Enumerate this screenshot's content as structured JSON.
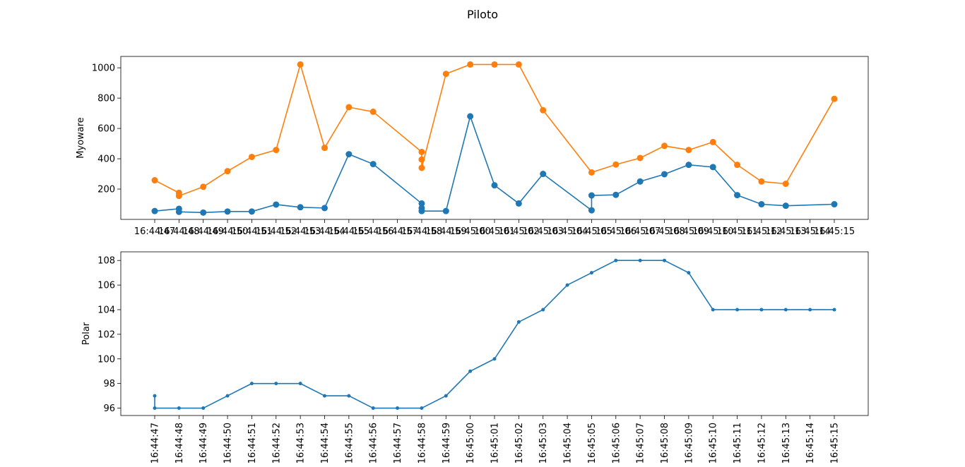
{
  "figure": {
    "suptitle": "Piloto"
  },
  "chart_data": [
    {
      "type": "line",
      "title": "",
      "xlabel": "",
      "ylabel": "Myoware",
      "ylim": [
        0,
        1075
      ],
      "yticks": [
        200,
        400,
        600,
        800,
        1000
      ],
      "grid": false,
      "markers": "large-circle",
      "categories": [
        "16:44:47",
        "16:44:48",
        "16:44:49",
        "16:44:50",
        "16:44:51",
        "16:44:52",
        "16:44:53",
        "16:44:54",
        "16:44:55",
        "16:44:56",
        "16:44:57",
        "16:44:58",
        "16:44:59",
        "16:45:00",
        "16:45:01",
        "16:45:02",
        "16:45:03",
        "16:45:04",
        "16:45:05",
        "16:45:06",
        "16:45:07",
        "16:45:08",
        "16:45:09",
        "16:45:10",
        "16:45:11",
        "16:45:12",
        "16:45:13",
        "16:45:14",
        "16:45:15"
      ],
      "series": [
        {
          "color": "#1f77b4",
          "points": [
            [
              "16:44:47",
              55
            ],
            [
              "16:44:48",
              70
            ],
            [
              "16:44:48",
              50
            ],
            [
              "16:44:49",
              45
            ],
            [
              "16:44:50",
              52
            ],
            [
              "16:44:51",
              52
            ],
            [
              "16:44:52",
              98
            ],
            [
              "16:44:53",
              80
            ],
            [
              "16:44:54",
              75
            ],
            [
              "16:44:55",
              430
            ],
            [
              "16:44:56",
              365
            ],
            [
              "16:44:58",
              105
            ],
            [
              "16:44:58",
              75
            ],
            [
              "16:44:58",
              55
            ],
            [
              "16:44:59",
              55
            ],
            [
              "16:45:00",
              680
            ],
            [
              "16:45:01",
              225
            ],
            [
              "16:45:02",
              105
            ],
            [
              "16:45:03",
              300
            ],
            [
              "16:45:05",
              60
            ],
            [
              "16:45:05",
              158
            ],
            [
              "16:45:06",
              162
            ],
            [
              "16:45:07",
              250
            ],
            [
              "16:45:08",
              298
            ],
            [
              "16:45:09",
              360
            ],
            [
              "16:45:10",
              345
            ],
            [
              "16:45:11",
              160
            ],
            [
              "16:45:12",
              100
            ],
            [
              "16:45:13",
              90
            ],
            [
              "16:45:15",
              100
            ]
          ]
        },
        {
          "color": "#ff7f0e",
          "points": [
            [
              "16:44:47",
              258
            ],
            [
              "16:44:48",
              175
            ],
            [
              "16:44:48",
              155
            ],
            [
              "16:44:49",
              215
            ],
            [
              "16:44:50",
              318
            ],
            [
              "16:44:51",
              412
            ],
            [
              "16:44:52",
              458
            ],
            [
              "16:44:53",
              1022
            ],
            [
              "16:44:54",
              472
            ],
            [
              "16:44:55",
              740
            ],
            [
              "16:44:56",
              710
            ],
            [
              "16:44:58",
              445
            ],
            [
              "16:44:58",
              395
            ],
            [
              "16:44:58",
              340
            ],
            [
              "16:44:59",
              960
            ],
            [
              "16:45:00",
              1022
            ],
            [
              "16:45:01",
              1022
            ],
            [
              "16:45:02",
              1022
            ],
            [
              "16:45:03",
              720
            ],
            [
              "16:45:05",
              310
            ],
            [
              "16:45:06",
              362
            ],
            [
              "16:45:07",
              405
            ],
            [
              "16:45:08",
              485
            ],
            [
              "16:45:09",
              458
            ],
            [
              "16:45:10",
              510
            ],
            [
              "16:45:11",
              360
            ],
            [
              "16:45:12",
              250
            ],
            [
              "16:45:13",
              235
            ],
            [
              "16:45:15",
              795
            ]
          ]
        }
      ]
    },
    {
      "type": "line",
      "title": "",
      "xlabel": "",
      "ylabel": "Polar",
      "ylim": [
        95.4,
        108.7
      ],
      "yticks": [
        96,
        98,
        100,
        102,
        104,
        106,
        108
      ],
      "grid": false,
      "markers": "small-dot",
      "xtick_rotation": 90,
      "categories": [
        "16:44:47",
        "16:44:48",
        "16:44:49",
        "16:44:50",
        "16:44:51",
        "16:44:52",
        "16:44:53",
        "16:44:54",
        "16:44:55",
        "16:44:56",
        "16:44:57",
        "16:44:58",
        "16:44:59",
        "16:45:00",
        "16:45:01",
        "16:45:02",
        "16:45:03",
        "16:45:04",
        "16:45:05",
        "16:45:06",
        "16:45:07",
        "16:45:08",
        "16:45:09",
        "16:45:10",
        "16:45:11",
        "16:45:12",
        "16:45:13",
        "16:45:14",
        "16:45:15"
      ],
      "series": [
        {
          "color": "#1f77b4",
          "points": [
            [
              "16:44:47",
              97
            ],
            [
              "16:44:47",
              96
            ],
            [
              "16:44:48",
              96
            ],
            [
              "16:44:49",
              96
            ],
            [
              "16:44:50",
              97
            ],
            [
              "16:44:51",
              98
            ],
            [
              "16:44:52",
              98
            ],
            [
              "16:44:53",
              98
            ],
            [
              "16:44:54",
              97
            ],
            [
              "16:44:55",
              97
            ],
            [
              "16:44:56",
              96
            ],
            [
              "16:44:57",
              96
            ],
            [
              "16:44:58",
              96
            ],
            [
              "16:44:59",
              97
            ],
            [
              "16:45:00",
              99
            ],
            [
              "16:45:01",
              100
            ],
            [
              "16:45:02",
              103
            ],
            [
              "16:45:03",
              104
            ],
            [
              "16:45:04",
              106
            ],
            [
              "16:45:05",
              107
            ],
            [
              "16:45:06",
              108
            ],
            [
              "16:45:07",
              108
            ],
            [
              "16:45:08",
              108
            ],
            [
              "16:45:09",
              107
            ],
            [
              "16:45:10",
              104
            ],
            [
              "16:45:11",
              104
            ],
            [
              "16:45:12",
              104
            ],
            [
              "16:45:13",
              104
            ],
            [
              "16:45:14",
              104
            ],
            [
              "16:45:15",
              104
            ]
          ]
        }
      ]
    }
  ]
}
